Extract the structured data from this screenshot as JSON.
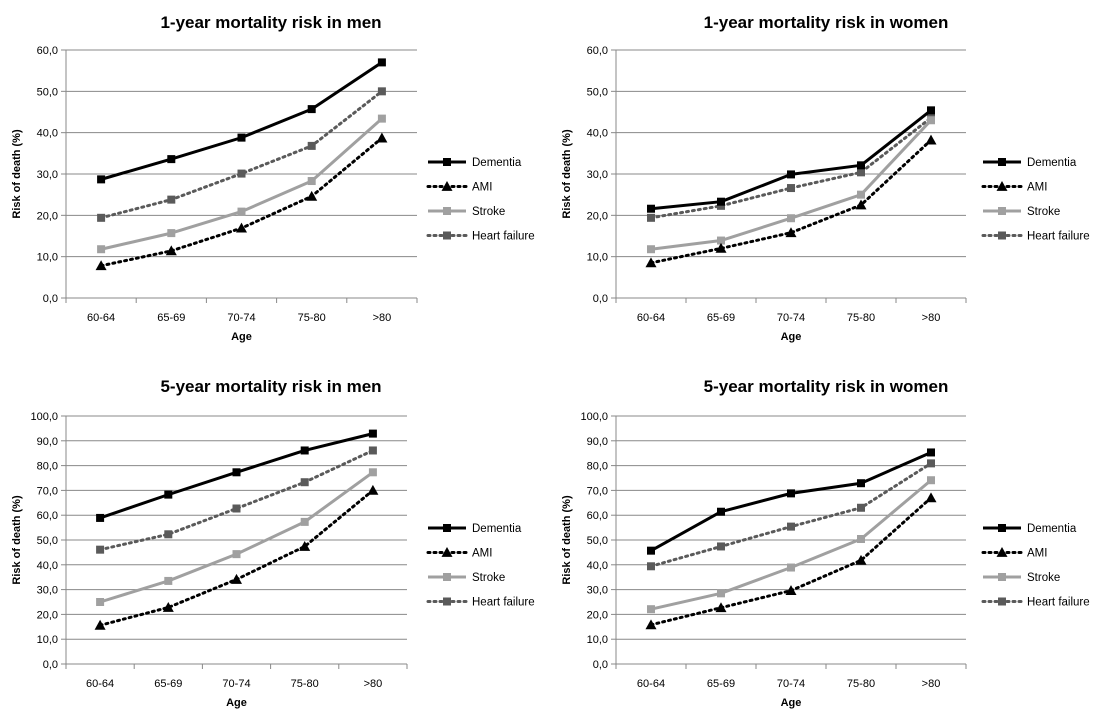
{
  "chart_data": [
    {
      "type": "line",
      "title": "1-year mortality risk in men",
      "xlabel": "Age",
      "ylabel": "Risk of death (%)",
      "categories": [
        "60-64",
        "65-69",
        "70-74",
        "75-80",
        ">80"
      ],
      "ylim": [
        0,
        60
      ],
      "ystep": 10,
      "yticks": [
        "0,0",
        "10,0",
        "20,0",
        "30,0",
        "40,0",
        "50,0",
        "60,0"
      ],
      "grid": true,
      "legend": "right",
      "series": [
        {
          "name": "Dementia",
          "values": [
            28.7,
            33.6,
            38.8,
            45.7,
            57.0
          ]
        },
        {
          "name": "AMI",
          "values": [
            7.8,
            11.4,
            16.9,
            24.6,
            38.7
          ]
        },
        {
          "name": "Stroke",
          "values": [
            11.8,
            15.7,
            20.9,
            28.3,
            43.4
          ]
        },
        {
          "name": "Heart failure",
          "values": [
            19.4,
            23.8,
            30.1,
            36.8,
            50.0
          ]
        }
      ]
    },
    {
      "type": "line",
      "title": "1-year mortality risk in women",
      "xlabel": "Age",
      "ylabel": "Risk of death (%)",
      "categories": [
        "60-64",
        "65-69",
        "70-74",
        "75-80",
        ">80"
      ],
      "ylim": [
        0,
        60
      ],
      "ystep": 10,
      "yticks": [
        "0,0",
        "10,0",
        "20,0",
        "30,0",
        "40,0",
        "50,0",
        "60,0"
      ],
      "grid": true,
      "legend": "right",
      "series": [
        {
          "name": "Dementia",
          "values": [
            21.6,
            23.3,
            29.9,
            32.1,
            45.4
          ]
        },
        {
          "name": "AMI",
          "values": [
            8.5,
            12.0,
            15.8,
            22.5,
            38.2
          ]
        },
        {
          "name": "Stroke",
          "values": [
            11.8,
            13.9,
            19.3,
            25.0,
            43.0
          ]
        },
        {
          "name": "Heart failure",
          "values": [
            19.4,
            22.3,
            26.6,
            30.4,
            43.6
          ]
        }
      ]
    },
    {
      "type": "line",
      "title": "5-year mortality risk in men",
      "xlabel": "Age",
      "ylabel": "Risk of death (%)",
      "categories": [
        "60-64",
        "65-69",
        "70-74",
        "75-80",
        ">80"
      ],
      "ylim": [
        0,
        100
      ],
      "ystep": 10,
      "yticks": [
        "0,0",
        "10,0",
        "20,0",
        "30,0",
        "40,0",
        "50,0",
        "60,0",
        "70,0",
        "80,0",
        "90,0",
        "100,0"
      ],
      "grid": true,
      "legend": "right",
      "series": [
        {
          "name": "Dementia",
          "values": [
            58.9,
            68.3,
            77.3,
            86.1,
            92.9
          ]
        },
        {
          "name": "AMI",
          "values": [
            15.6,
            22.8,
            34.1,
            47.4,
            70.0
          ]
        },
        {
          "name": "Stroke",
          "values": [
            25.0,
            33.5,
            44.3,
            57.3,
            77.3
          ]
        },
        {
          "name": "Heart failure",
          "values": [
            46.1,
            52.3,
            62.7,
            73.3,
            86.1
          ]
        }
      ]
    },
    {
      "type": "line",
      "title": "5-year mortality risk in women",
      "xlabel": "Age",
      "ylabel": "Risk of death (%)",
      "categories": [
        "60-64",
        "65-69",
        "70-74",
        "75-80",
        ">80"
      ],
      "ylim": [
        0,
        100
      ],
      "ystep": 10,
      "yticks": [
        "0,0",
        "10,0",
        "20,0",
        "30,0",
        "40,0",
        "50,0",
        "60,0",
        "70,0",
        "80,0",
        "90,0",
        "100,0"
      ],
      "grid": true,
      "legend": "right",
      "series": [
        {
          "name": "Dementia",
          "values": [
            45.7,
            61.4,
            68.8,
            72.9,
            85.3
          ]
        },
        {
          "name": "AMI",
          "values": [
            15.8,
            22.7,
            29.6,
            41.8,
            67.0
          ]
        },
        {
          "name": "Stroke",
          "values": [
            22.1,
            28.5,
            38.9,
            50.4,
            74.1
          ]
        },
        {
          "name": "Heart failure",
          "values": [
            39.4,
            47.4,
            55.4,
            63.0,
            80.9
          ]
        }
      ]
    }
  ],
  "styles": {
    "Dementia": {
      "color": "#000000",
      "dash": "",
      "marker": "square"
    },
    "AMI": {
      "color": "#000000",
      "dash": "2,4",
      "marker": "triangle"
    },
    "Stroke": {
      "color": "#a0a0a0",
      "dash": "",
      "marker": "square"
    },
    "Heart failure": {
      "color": "#5a5a5a",
      "dash": "2,4",
      "marker": "square"
    }
  },
  "axis_color": "#888888",
  "grid_color": "#888888"
}
